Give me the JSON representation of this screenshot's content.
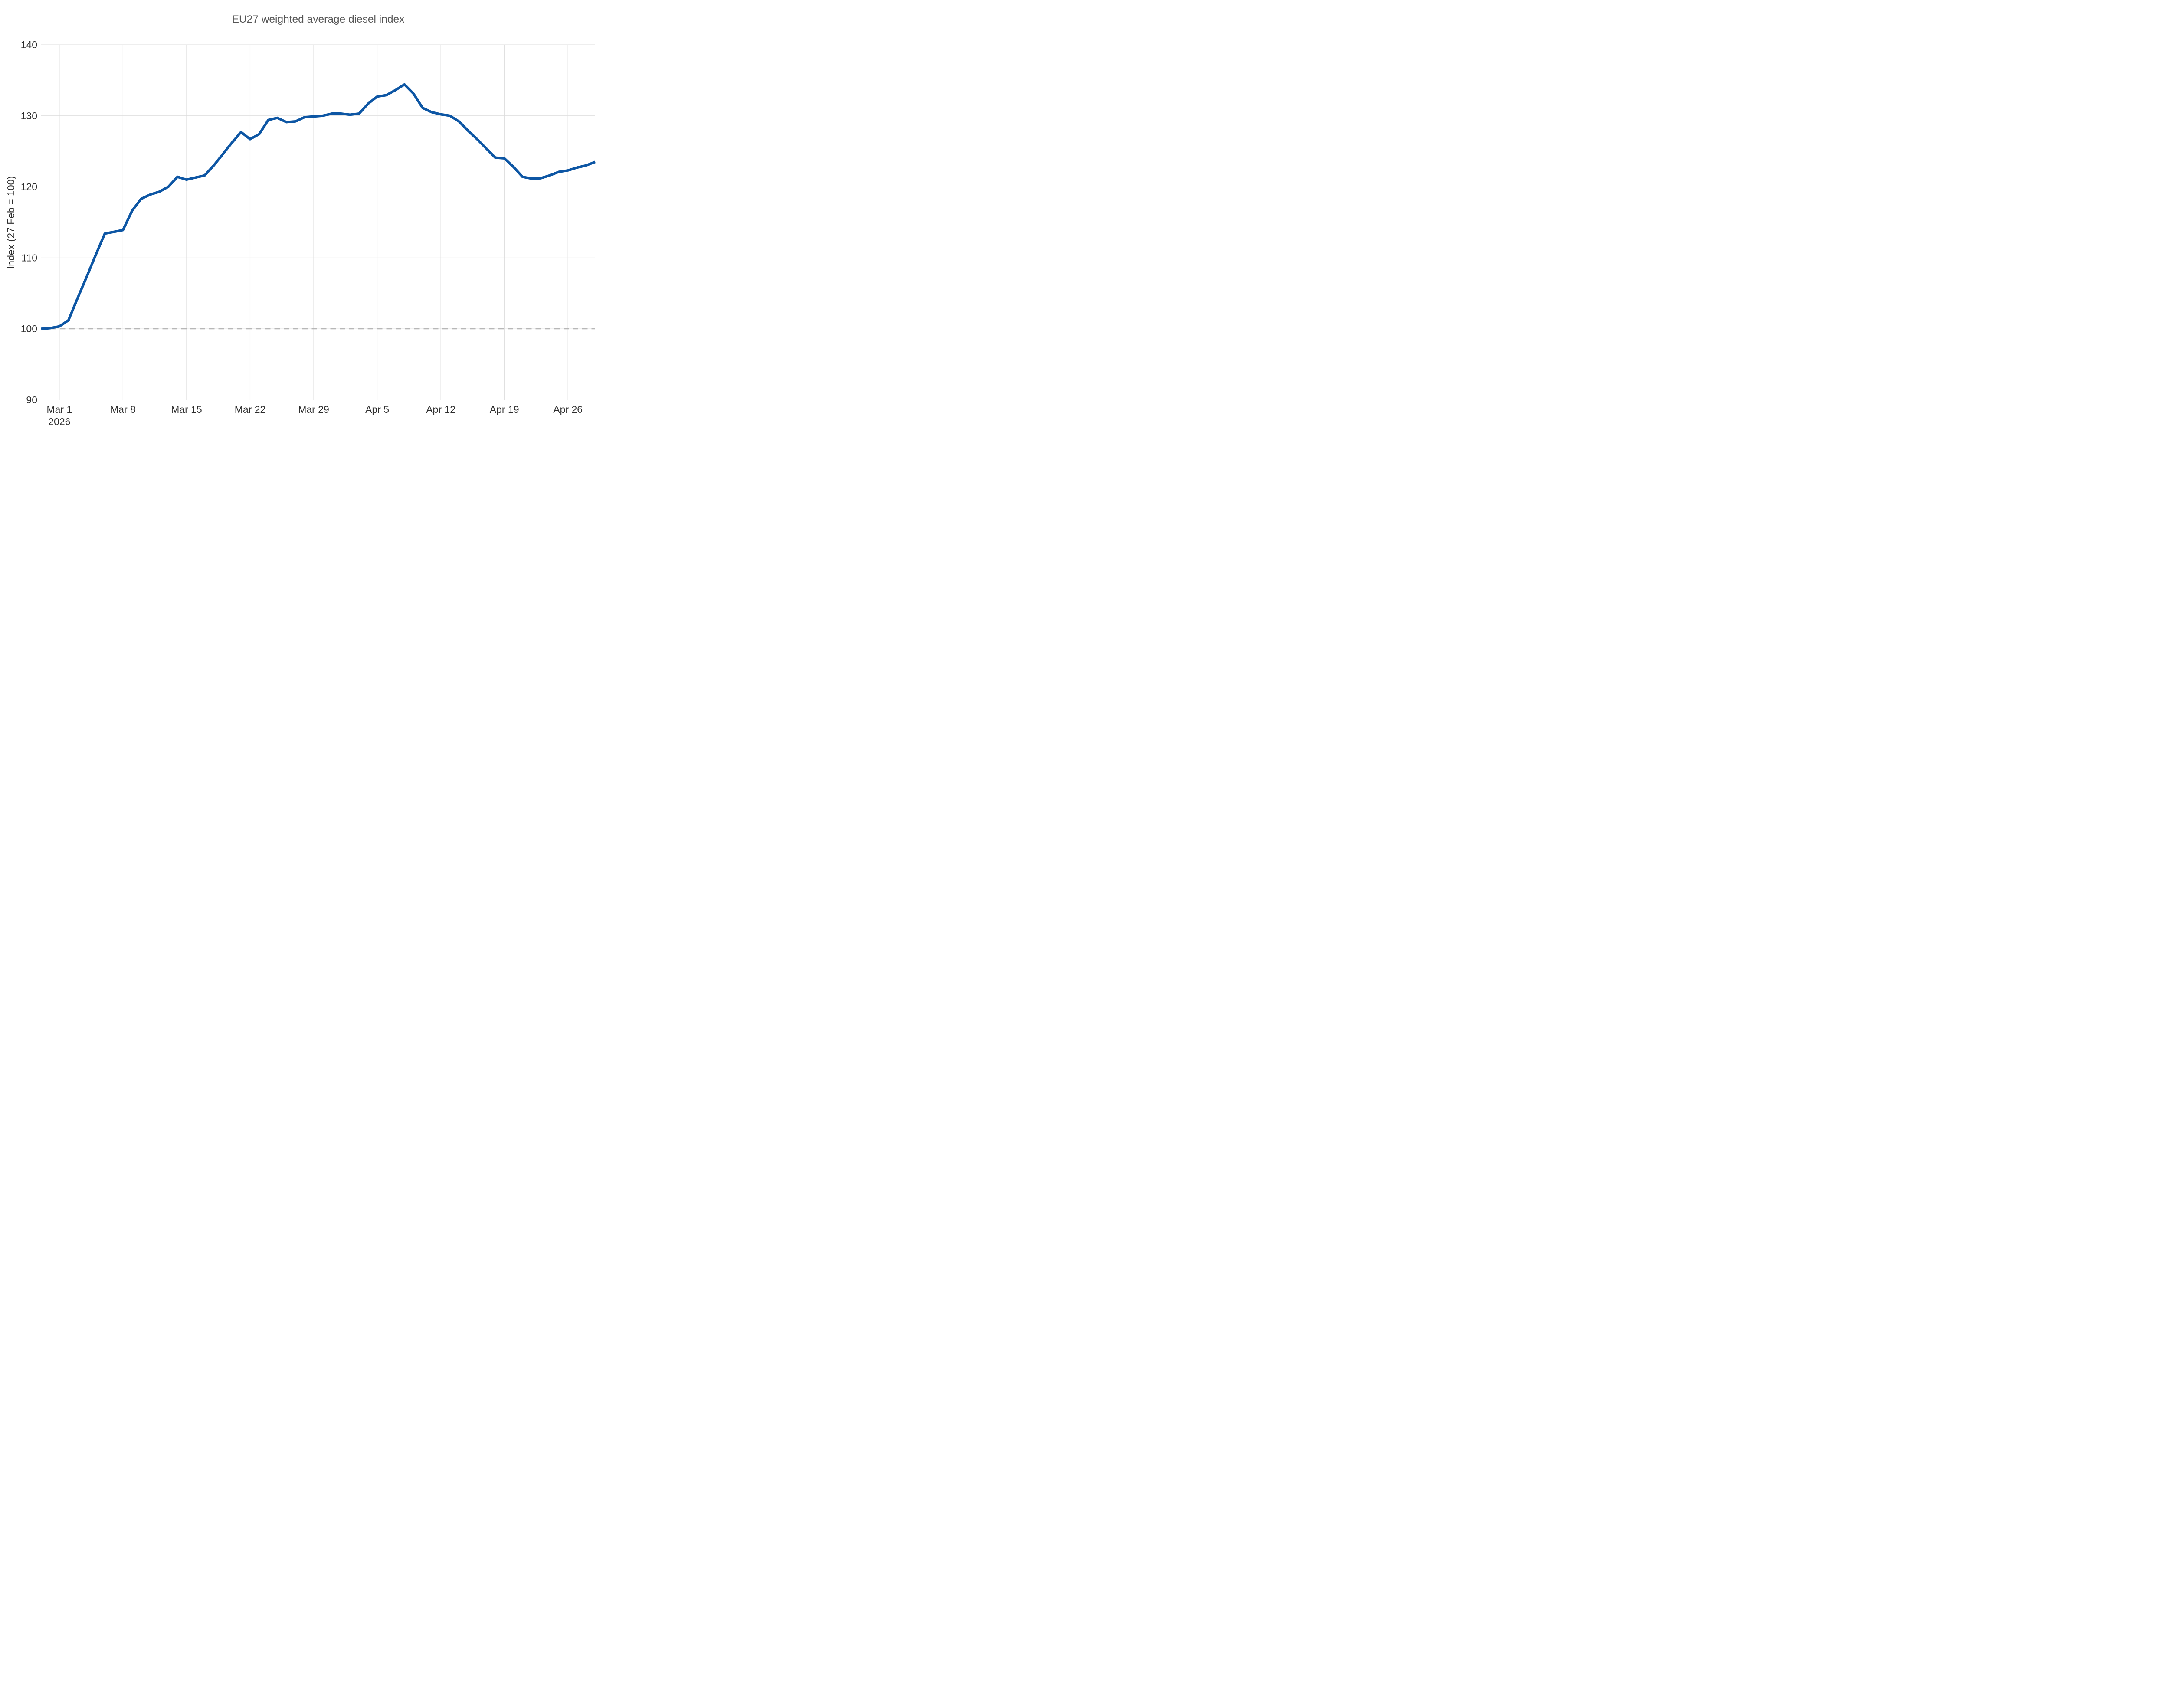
{
  "chart_data": {
    "type": "line",
    "title": "EU27 weighted average diesel index",
    "xlabel": "",
    "ylabel": "Index (27 Feb = 100)",
    "ylim": [
      90,
      140
    ],
    "yticks": [
      90,
      100,
      110,
      120,
      130,
      140
    ],
    "gridlines_y": [
      100,
      110,
      120,
      130,
      140
    ],
    "grid": "on",
    "legend": "none",
    "baseline": {
      "value": 100,
      "style": "dashed",
      "note": "reference line at index 100"
    },
    "x_ticks": [
      {
        "index": 2,
        "label": "Mar 1",
        "sublabel": "2026"
      },
      {
        "index": 9,
        "label": "Mar 8"
      },
      {
        "index": 16,
        "label": "Mar 15"
      },
      {
        "index": 23,
        "label": "Mar 22"
      },
      {
        "index": 30,
        "label": "Mar 29"
      },
      {
        "index": 37,
        "label": "Apr 5"
      },
      {
        "index": 44,
        "label": "Apr 12"
      },
      {
        "index": 51,
        "label": "Apr 19"
      },
      {
        "index": 58,
        "label": "Apr 26"
      }
    ],
    "series": [
      {
        "name": "EU27 weighted average diesel index",
        "dates": [
          "Feb 27",
          "Feb 28",
          "Mar 1",
          "Mar 2",
          "Mar 3",
          "Mar 4",
          "Mar 5",
          "Mar 6",
          "Mar 7",
          "Mar 8",
          "Mar 9",
          "Mar 10",
          "Mar 11",
          "Mar 12",
          "Mar 13",
          "Mar 14",
          "Mar 15",
          "Mar 16",
          "Mar 17",
          "Mar 18",
          "Mar 19",
          "Mar 20",
          "Mar 21",
          "Mar 22",
          "Mar 23",
          "Mar 24",
          "Mar 25",
          "Mar 26",
          "Mar 27",
          "Mar 28",
          "Mar 29",
          "Mar 30",
          "Mar 31",
          "Apr 1",
          "Apr 2",
          "Apr 3",
          "Apr 4",
          "Apr 5",
          "Apr 6",
          "Apr 7",
          "Apr 8",
          "Apr 9",
          "Apr 10",
          "Apr 11",
          "Apr 12",
          "Apr 13",
          "Apr 14",
          "Apr 15",
          "Apr 16",
          "Apr 17",
          "Apr 18",
          "Apr 19",
          "Apr 20",
          "Apr 21",
          "Apr 22",
          "Apr 23",
          "Apr 24",
          "Apr 25",
          "Apr 26",
          "Apr 27",
          "Apr 28",
          "Apr 29"
        ],
        "values": [
          100.0,
          100.1,
          100.35,
          101.2,
          104.3,
          107.3,
          110.4,
          113.4,
          113.65,
          113.9,
          116.6,
          118.3,
          118.9,
          119.3,
          120.0,
          121.4,
          121.0,
          121.3,
          121.6,
          123.0,
          124.6,
          126.2,
          127.7,
          126.7,
          127.4,
          129.4,
          129.7,
          129.1,
          129.2,
          129.8,
          129.9,
          130.0,
          130.3,
          130.3,
          130.15,
          130.3,
          131.7,
          132.7,
          132.9,
          133.6,
          134.4,
          133.1,
          131.1,
          130.5,
          130.2,
          130.0,
          129.2,
          127.9,
          126.7,
          125.4,
          124.1,
          124.0,
          122.8,
          121.4,
          121.15,
          121.2,
          121.6,
          122.1,
          122.3,
          122.7,
          123.0,
          123.5
        ]
      }
    ],
    "colors": {
      "line": "#0d56a4",
      "grid": "#dcdcdc",
      "baseline": "#adadad",
      "title_text": "#555555",
      "tick_text": "#2d2d2d"
    }
  }
}
